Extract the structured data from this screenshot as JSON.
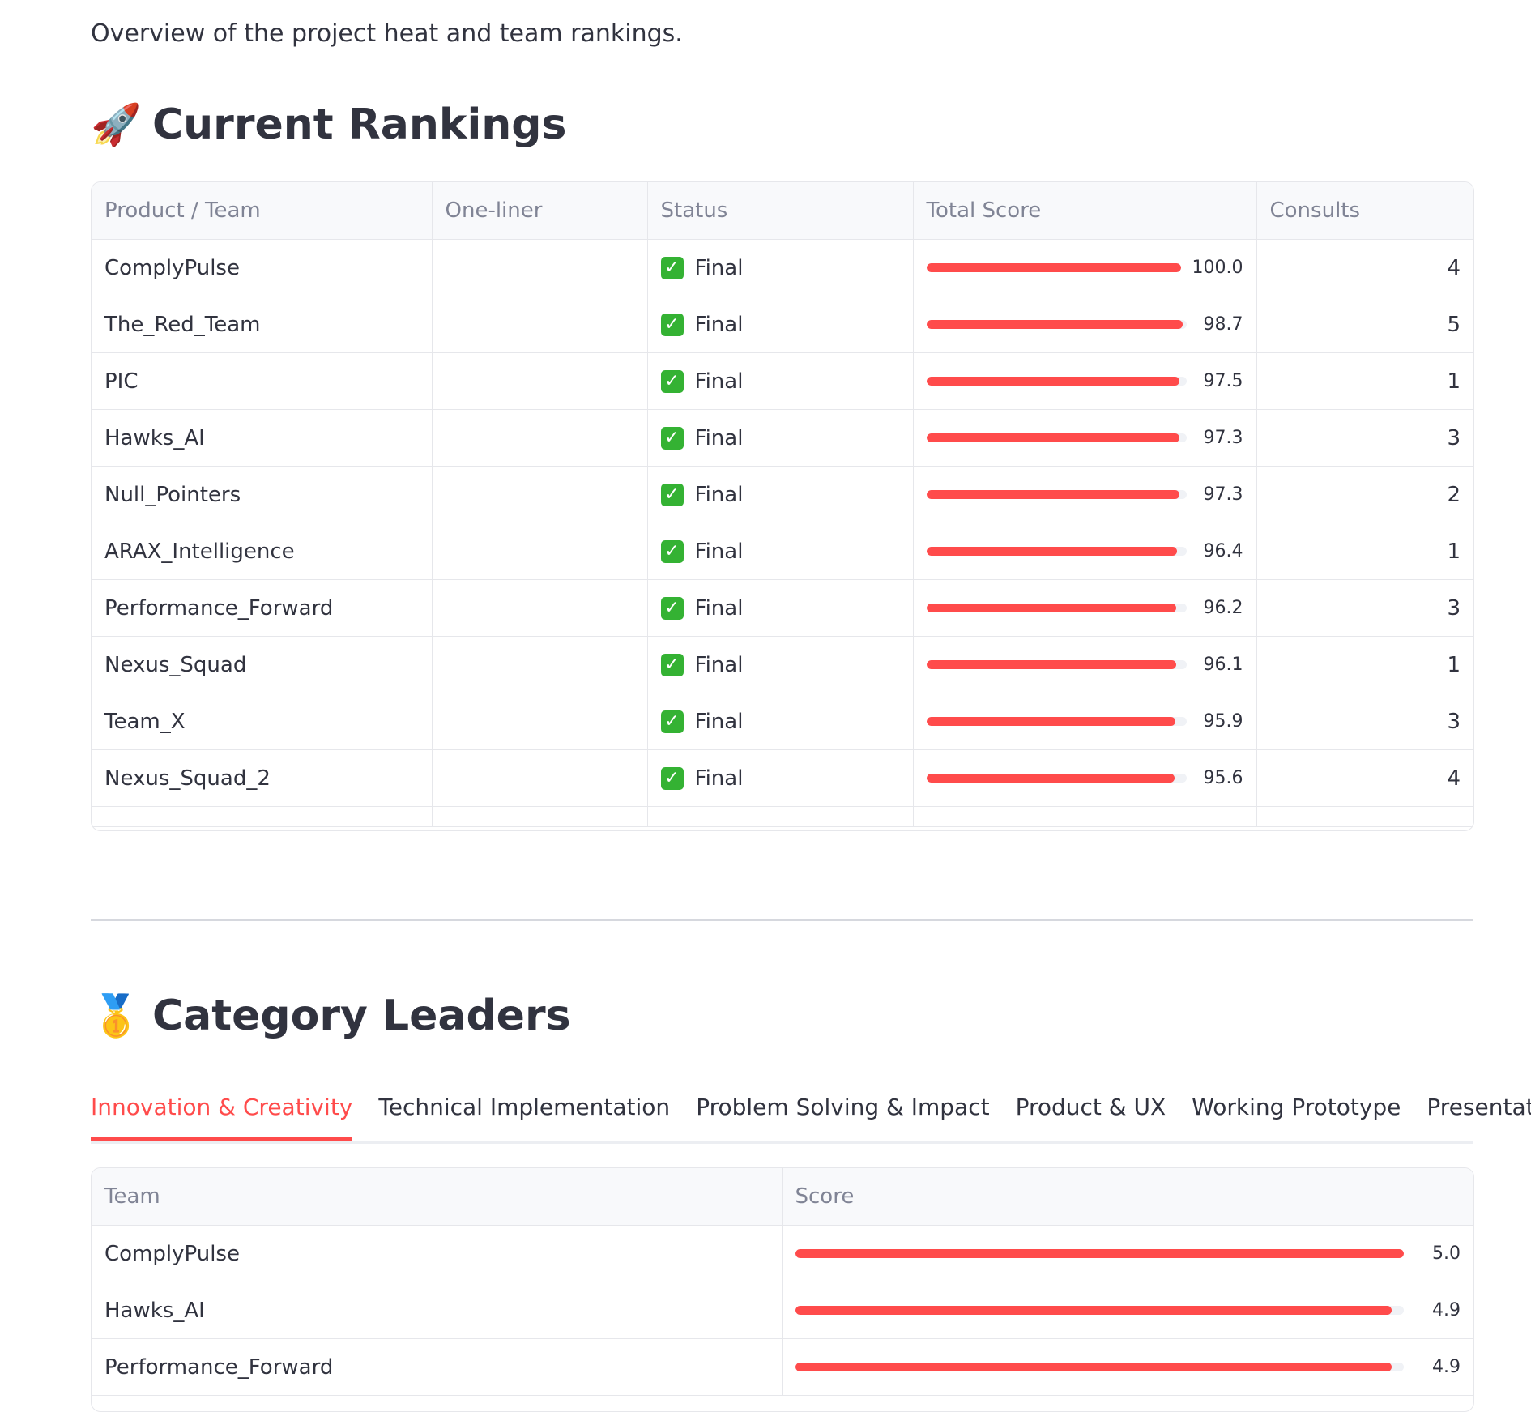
{
  "intro": "Overview of the project heat and team rankings.",
  "rankings": {
    "emoji": "🚀",
    "title": "Current Rankings",
    "columns": [
      "Product / Team",
      "One-liner",
      "Status",
      "Total Score",
      "Consults"
    ],
    "rows": [
      {
        "team": "ComplyPulse",
        "one_liner": "",
        "status": "Final",
        "score": 100.0,
        "score_label": "100.0",
        "consults": "4"
      },
      {
        "team": "The_Red_Team",
        "one_liner": "",
        "status": "Final",
        "score": 98.7,
        "score_label": "98.7",
        "consults": "5"
      },
      {
        "team": "PIC",
        "one_liner": "",
        "status": "Final",
        "score": 97.5,
        "score_label": "97.5",
        "consults": "1"
      },
      {
        "team": "Hawks_AI",
        "one_liner": "",
        "status": "Final",
        "score": 97.3,
        "score_label": "97.3",
        "consults": "3"
      },
      {
        "team": "Null_Pointers",
        "one_liner": "",
        "status": "Final",
        "score": 97.3,
        "score_label": "97.3",
        "consults": "2"
      },
      {
        "team": "ARAX_Intelligence",
        "one_liner": "",
        "status": "Final",
        "score": 96.4,
        "score_label": "96.4",
        "consults": "1"
      },
      {
        "team": "Performance_Forward",
        "one_liner": "",
        "status": "Final",
        "score": 96.2,
        "score_label": "96.2",
        "consults": "3"
      },
      {
        "team": "Nexus_Squad",
        "one_liner": "",
        "status": "Final",
        "score": 96.1,
        "score_label": "96.1",
        "consults": "1"
      },
      {
        "team": "Team_X",
        "one_liner": "",
        "status": "Final",
        "score": 95.9,
        "score_label": "95.9",
        "consults": "3"
      },
      {
        "team": "Nexus_Squad_2",
        "one_liner": "",
        "status": "Final",
        "score": 95.6,
        "score_label": "95.6",
        "consults": "4"
      }
    ],
    "score_max": 100
  },
  "category": {
    "emoji": "🥇",
    "title": "Category Leaders",
    "tabs": [
      "Innovation & Creativity",
      "Technical Implementation",
      "Problem Solving & Impact",
      "Product & UX",
      "Working Prototype",
      "Presentation"
    ],
    "active_tab": 0,
    "columns": [
      "Team",
      "Score"
    ],
    "rows": [
      {
        "team": "ComplyPulse",
        "score": 5.0,
        "score_label": "5.0"
      },
      {
        "team": "Hawks_AI",
        "score": 4.9,
        "score_label": "4.9"
      },
      {
        "team": "Performance_Forward",
        "score": 4.9,
        "score_label": "4.9"
      }
    ],
    "score_max": 5
  },
  "colors": {
    "accent": "#ff4b4b",
    "check": "#34b233",
    "text": "#31333f",
    "header_text": "#808495"
  }
}
